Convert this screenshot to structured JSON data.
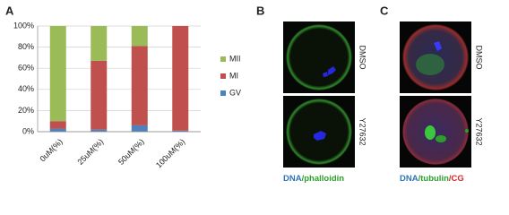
{
  "chart_data": {
    "type": "stacked-bar",
    "categories": [
      "0uM(%)",
      "25uM(%)",
      "50uM(%)",
      "100uM(%)"
    ],
    "series": [
      {
        "name": "GV",
        "color": "#4f81bd",
        "values": [
          3,
          2,
          6,
          1
        ]
      },
      {
        "name": "MI",
        "color": "#c0504d",
        "values": [
          7,
          65,
          75,
          99
        ]
      },
      {
        "name": "MII",
        "color": "#9bbb59",
        "values": [
          90,
          33,
          19,
          0
        ]
      }
    ],
    "ylim": [
      0,
      100
    ],
    "yticks": [
      {
        "value": 0,
        "label": "0%"
      },
      {
        "value": 20,
        "label": "20%"
      },
      {
        "value": 40,
        "label": "40%"
      },
      {
        "value": 60,
        "label": "60%"
      },
      {
        "value": 80,
        "label": "80%"
      },
      {
        "value": 100,
        "label": "100%"
      }
    ],
    "grid": true,
    "legend": "right"
  },
  "panels": {
    "a": "A",
    "b": "B",
    "c": "C"
  },
  "panel_b": {
    "rows": [
      "DMSO",
      "Y27632"
    ],
    "caption": [
      {
        "text": "DNA",
        "color": "#2e75b6"
      },
      {
        "text": "/phalloidin",
        "color": "#2ca02c"
      }
    ]
  },
  "panel_c": {
    "rows": [
      "DMSO",
      "Y27632"
    ],
    "caption": [
      {
        "text": "DNA",
        "color": "#2e75b6"
      },
      {
        "text": "/tubulin",
        "color": "#2ca02c"
      },
      {
        "text": "/CG",
        "color": "#d62728"
      }
    ]
  }
}
